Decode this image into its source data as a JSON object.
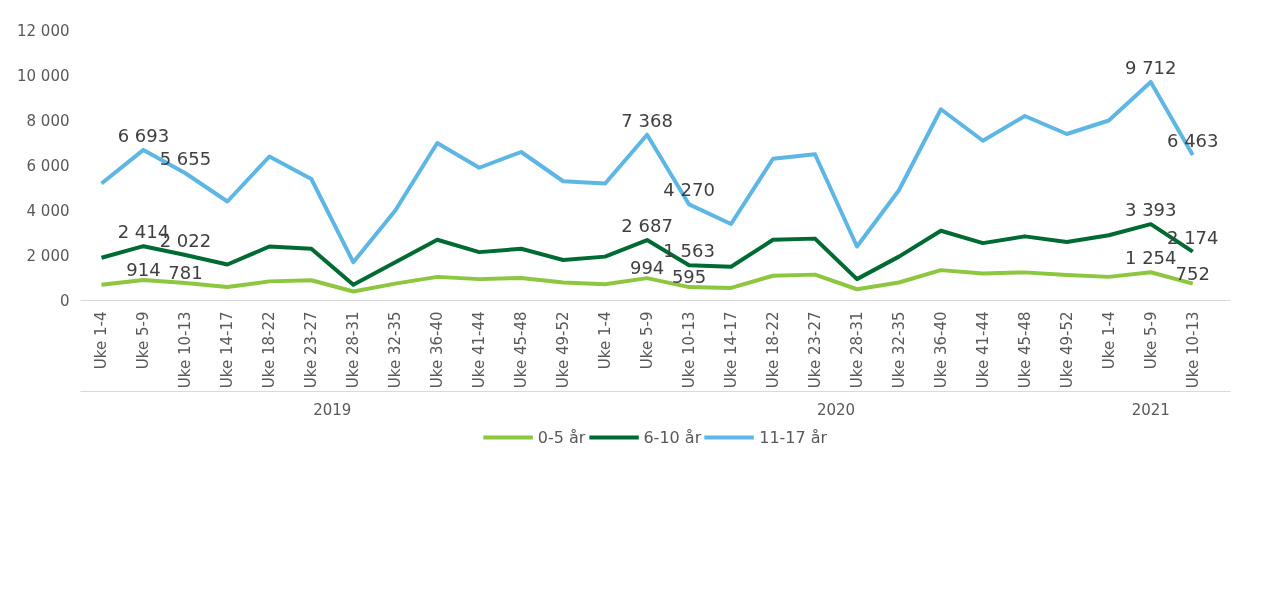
{
  "chart_data": {
    "type": "line",
    "categories": [
      "Uke 1-4",
      "Uke 5-9",
      "Uke 10-13",
      "Uke 14-17",
      "Uke 18-22",
      "Uke 23-27",
      "Uke 28-31",
      "Uke 32-35",
      "Uke 36-40",
      "Uke 41-44",
      "Uke 45-48",
      "Uke 49-52",
      "Uke 1-4",
      "Uke 5-9",
      "Uke 10-13",
      "Uke 14-17",
      "Uke 18-22",
      "Uke 23-27",
      "Uke 28-31",
      "Uke 32-35",
      "Uke 36-40",
      "Uke 41-44",
      "Uke 45-48",
      "Uke 49-52",
      "Uke 1-4",
      "Uke 5-9",
      "Uke 10-13"
    ],
    "series": [
      {
        "name": "0-5 år",
        "color": "#8dc63f",
        "values": [
          700,
          914,
          781,
          600,
          850,
          900,
          400,
          750,
          1050,
          950,
          1000,
          800,
          720,
          994,
          595,
          560,
          1100,
          1150,
          500,
          800,
          1350,
          1200,
          1250,
          1130,
          1050,
          1254,
          752
        ],
        "value_labels": [
          null,
          "914",
          "781",
          null,
          null,
          null,
          null,
          null,
          null,
          null,
          null,
          null,
          null,
          "994",
          "595",
          null,
          null,
          null,
          null,
          null,
          null,
          null,
          null,
          null,
          null,
          "1 254",
          "752"
        ]
      },
      {
        "name": "6-10 år",
        "color": "#006a33",
        "values": [
          1900,
          2414,
          2022,
          1600,
          2400,
          2300,
          700,
          1700,
          2700,
          2150,
          2300,
          1800,
          1950,
          2687,
          1563,
          1500,
          2700,
          2750,
          950,
          1950,
          3100,
          2550,
          2850,
          2600,
          2900,
          3393,
          2174
        ],
        "value_labels": [
          null,
          "2 414",
          "2 022",
          null,
          null,
          null,
          null,
          null,
          null,
          null,
          null,
          null,
          null,
          "2 687",
          "1 563",
          null,
          null,
          null,
          null,
          null,
          null,
          null,
          null,
          null,
          null,
          "3 393",
          "2 174"
        ]
      },
      {
        "name": "11-17 år",
        "color": "#5eb6e4",
        "values": [
          5200,
          6693,
          5655,
          4400,
          6400,
          5400,
          1700,
          4000,
          7000,
          5900,
          6600,
          5300,
          5200,
          7368,
          4270,
          3400,
          6300,
          6500,
          2400,
          4900,
          8500,
          7100,
          8200,
          7400,
          8000,
          9712,
          6463
        ],
        "value_labels": [
          null,
          "6 693",
          "5 655",
          null,
          null,
          null,
          null,
          null,
          null,
          null,
          null,
          null,
          null,
          "7 368",
          "4 270",
          null,
          null,
          null,
          null,
          null,
          null,
          null,
          null,
          null,
          null,
          "9 712",
          "6 463"
        ]
      }
    ],
    "ylim": [
      0,
      12000
    ],
    "yticks": [
      0,
      {
        "value": 2000,
        "label": "2 000"
      },
      {
        "value": 4000,
        "label": "4 000"
      },
      {
        "value": 6000,
        "label": "6 000"
      },
      {
        "value": 8000,
        "label": "8 000"
      },
      {
        "value": 10000,
        "label": "10 000"
      },
      {
        "value": 12000,
        "label": "12 000"
      }
    ],
    "annotations": [
      "2019",
      "2020",
      "2021"
    ],
    "grid": false,
    "legend": "bottom",
    "line_style": "solid",
    "marker": "none"
  }
}
